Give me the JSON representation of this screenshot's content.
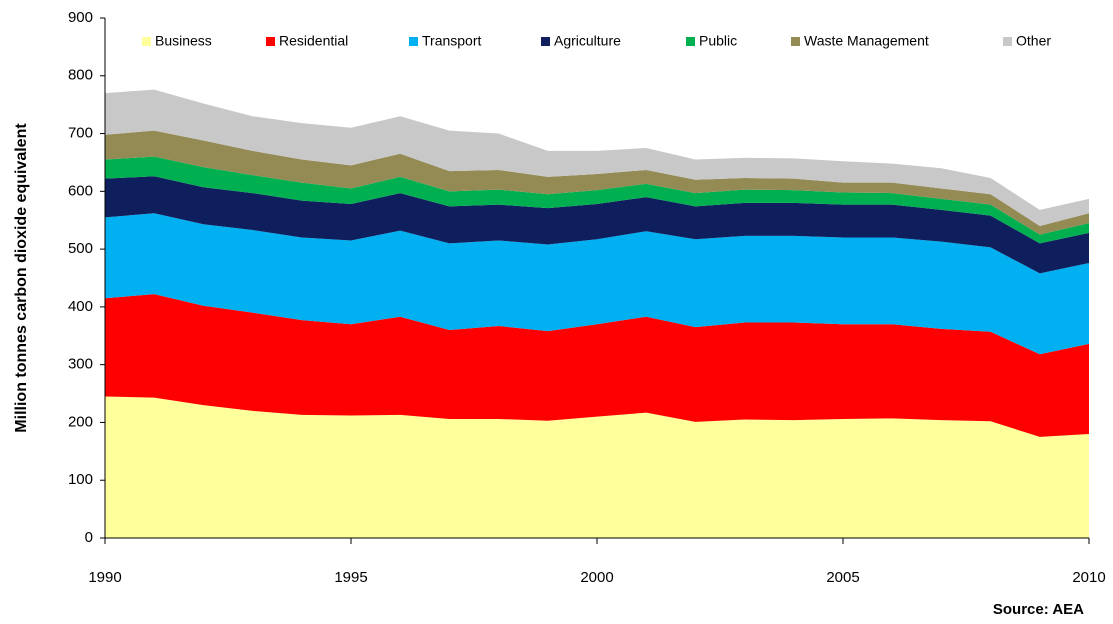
{
  "chart_data": {
    "type": "stacked_area",
    "y_label": "Million  tonnes carbon dioxide  equivalent",
    "source": "Source: AEA",
    "x": [
      1990,
      1991,
      1992,
      1993,
      1994,
      1995,
      1996,
      1997,
      1998,
      1999,
      2000,
      2001,
      2002,
      2003,
      2004,
      2005,
      2006,
      2007,
      2008,
      2009,
      2010
    ],
    "xlim": [
      1990,
      2010
    ],
    "xticks": [
      1990,
      1995,
      2000,
      2005,
      2010
    ],
    "ylim": [
      0,
      900
    ],
    "yticks": [
      0,
      100,
      200,
      300,
      400,
      500,
      600,
      700,
      800,
      900
    ],
    "series": [
      {
        "name": "Business",
        "color": "#ffff9c",
        "values": [
          245,
          243,
          230,
          220,
          213,
          212,
          213,
          206,
          206,
          203,
          210,
          217,
          201,
          205,
          204,
          206,
          207,
          204,
          202,
          175,
          180
        ]
      },
      {
        "name": "Residential",
        "color": "#ff0000",
        "values": [
          170,
          179,
          172,
          170,
          164,
          158,
          170,
          154,
          161,
          155,
          160,
          166,
          164,
          168,
          169,
          164,
          163,
          158,
          155,
          143,
          156
        ]
      },
      {
        "name": "Transport",
        "color": "#00b0f0",
        "values": [
          140,
          140,
          141,
          143,
          143,
          145,
          149,
          150,
          148,
          150,
          147,
          148,
          152,
          150,
          150,
          150,
          150,
          151,
          146,
          140,
          140
        ]
      },
      {
        "name": "Agriculture",
        "color": "#0f1f5e",
        "values": [
          67,
          64,
          64,
          64,
          64,
          63,
          65,
          64,
          62,
          63,
          61,
          59,
          57,
          57,
          57,
          57,
          57,
          55,
          55,
          52,
          52
        ]
      },
      {
        "name": "Public",
        "color": "#00b050",
        "values": [
          33,
          34,
          35,
          31,
          31,
          27,
          28,
          26,
          26,
          24,
          24,
          23,
          23,
          23,
          22,
          21,
          20,
          19,
          19,
          15,
          17
        ]
      },
      {
        "name": "Waste Management",
        "color": "#948a54",
        "values": [
          43,
          45,
          46,
          42,
          40,
          40,
          40,
          35,
          34,
          30,
          28,
          24,
          23,
          20,
          20,
          17,
          18,
          18,
          18,
          15,
          17
        ]
      },
      {
        "name": "Other",
        "color": "#c8c8c8",
        "values": [
          72,
          71,
          64,
          60,
          63,
          65,
          65,
          70,
          63,
          45,
          40,
          38,
          35,
          35,
          35,
          37,
          33,
          35,
          28,
          28,
          25
        ]
      }
    ]
  }
}
